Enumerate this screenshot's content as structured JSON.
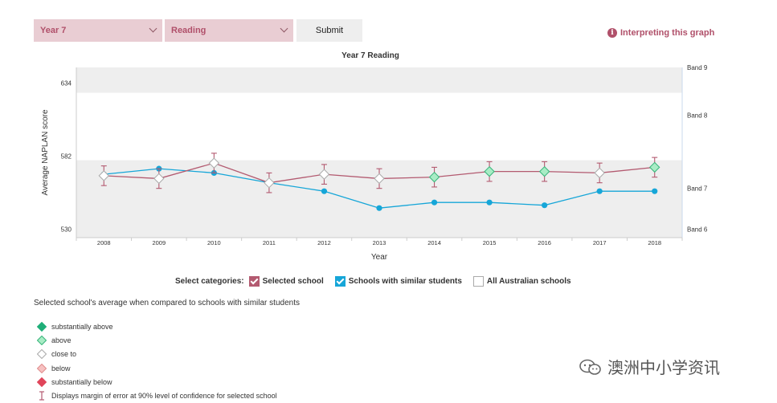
{
  "controls": {
    "year_select": "Year 7",
    "domain_select": "Reading",
    "submit_label": "Submit",
    "interpreting_link": "Interpreting this graph",
    "info_glyph": "i"
  },
  "chart_data": {
    "type": "line",
    "title": "Year 7 Reading",
    "xlabel": "Year",
    "ylabel": "Average NAPLAN score",
    "categories": [
      "2008",
      "2009",
      "2010",
      "2011",
      "2012",
      "2013",
      "2014",
      "2015",
      "2016",
      "2017",
      "2018"
    ],
    "y_ticks": [
      530,
      582,
      634
    ],
    "ylim": [
      524,
      645
    ],
    "bands": [
      {
        "label": "Band 9",
        "value": 645
      },
      {
        "label": "Band 8",
        "value": 611
      },
      {
        "label": "Band 7",
        "value": 559
      },
      {
        "label": "Band 6",
        "value": 530
      }
    ],
    "shaded_ranges": [
      [
        627,
        645
      ],
      [
        524,
        579
      ]
    ],
    "series": [
      {
        "name": "Selected school",
        "color": "#b35a70",
        "values": [
          568,
          566,
          577,
          563,
          569,
          566,
          567,
          571,
          571,
          570,
          574
        ],
        "error": [
          7,
          7,
          7,
          7,
          7,
          7,
          7,
          7,
          7,
          7,
          7
        ],
        "comparison": [
          "close to",
          "close to",
          "close to",
          "close to",
          "close to",
          "close to",
          "above",
          "above",
          "above",
          "close to",
          "above"
        ]
      },
      {
        "name": "Schools with similar students",
        "color": "#16a6d8",
        "values": [
          569,
          573,
          570,
          563,
          557,
          545,
          549,
          549,
          547,
          557,
          557
        ]
      }
    ]
  },
  "categories_panel": {
    "label": "Select categories:",
    "items": [
      {
        "label": "Selected school",
        "checked": true
      },
      {
        "label": "Schools with similar students",
        "checked": true
      },
      {
        "label": "All Australian schools",
        "checked": false
      }
    ]
  },
  "comparison_legend": {
    "title": "Selected school's average when compared to schools with similar students",
    "items": [
      {
        "label": "substantially above",
        "fill": "#1fae78",
        "stroke": "#1fae78"
      },
      {
        "label": "above",
        "fill": "#a8ecc5",
        "stroke": "#37b57a"
      },
      {
        "label": "close to",
        "fill": "#ffffff",
        "stroke": "#aaaaaa"
      },
      {
        "label": "below",
        "fill": "#f6c1c1",
        "stroke": "#e08d8d"
      },
      {
        "label": "substantially below",
        "fill": "#e0455a",
        "stroke": "#e0455a"
      }
    ],
    "error_note": "Displays margin of error at 90% level of confidence for selected school"
  },
  "watermark": {
    "text": "澳洲中小学资讯"
  }
}
